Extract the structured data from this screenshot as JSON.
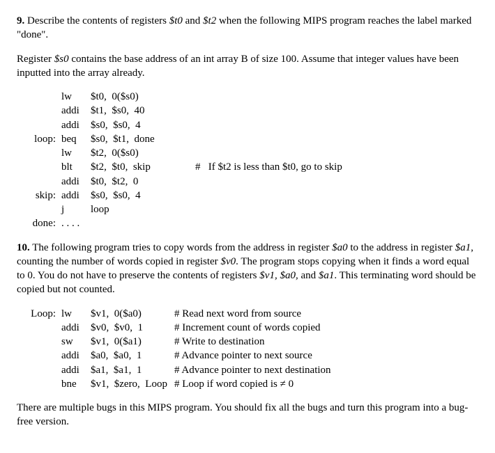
{
  "q9": {
    "prompt_a": "9.",
    "prompt_b": " Describe the contents of registers ",
    "reg_t0": "$t0",
    "prompt_c": " and ",
    "reg_t2": "$t2",
    "prompt_d": " when the following MIPS program reaches the label marked \"done\".",
    "setup_a": "Register ",
    "reg_s0": "$s0",
    "setup_b": " contains the base address of an int array B of size 100. Assume that integer values have been inputted into the array already.",
    "lines": [
      {
        "label": "",
        "op": "lw",
        "args": "$t0,  0($s0)",
        "comment": ""
      },
      {
        "label": "",
        "op": "addi",
        "args": "$t1,  $s0,  40",
        "comment": ""
      },
      {
        "label": "",
        "op": "addi",
        "args": "$s0,  $s0,  4",
        "comment": ""
      },
      {
        "label": "loop:",
        "op": "beq",
        "args": "$s0,  $t1,  done",
        "comment": ""
      },
      {
        "label": "",
        "op": "lw",
        "args": "$t2,  0($s0)",
        "comment": ""
      },
      {
        "label": "",
        "op": "blt",
        "args": "$t2,  $t0,  skip",
        "comment": "#   If $t2 is less than $t0, go to skip"
      },
      {
        "label": "",
        "op": "addi",
        "args": "$t0,  $t2,  0",
        "comment": ""
      },
      {
        "label": "skip:",
        "op": "addi",
        "args": "$s0,  $s0,  4",
        "comment": ""
      },
      {
        "label": "",
        "op": "j",
        "args": "loop",
        "comment": ""
      },
      {
        "label": "done:",
        "op": ". . . .",
        "args": "",
        "comment": ""
      }
    ]
  },
  "q10": {
    "prompt_a": "10.",
    "prompt_b": "  The following program tries to copy words from the address in register ",
    "reg_a0": "$a0",
    "prompt_c": " to the address in register ",
    "reg_a1": "$a1",
    "prompt_d": ", counting the number of words copied in register ",
    "reg_v0": "$v0",
    "prompt_e": ". The program stops copying when it finds a word equal to 0. You do not have to preserve the contents of registers ",
    "reg_v1": "$v1, $a0,",
    "prompt_f": " and ",
    "reg_a1b": "$a1",
    "prompt_g": ". This terminating word should be copied but not counted.",
    "lines": [
      {
        "label": "Loop:",
        "op": "lw",
        "args": "$v1,  0($a0)",
        "comment": "# Read next word from source"
      },
      {
        "label": "",
        "op": "addi",
        "args": "$v0,  $v0,  1",
        "comment": "# Increment count of words copied"
      },
      {
        "label": "",
        "op": "sw",
        "args": "$v1,  0($a1)",
        "comment": "# Write to destination"
      },
      {
        "label": "",
        "op": "addi",
        "args": "$a0,  $a0,  1",
        "comment": "# Advance pointer to next source"
      },
      {
        "label": "",
        "op": "addi",
        "args": "$a1,  $a1,  1",
        "comment": "# Advance pointer to next destination"
      },
      {
        "label": "",
        "op": "bne",
        "args": "$v1,  $zero,  Loop",
        "comment": "# Loop if word copied is ≠ 0"
      }
    ],
    "footer": "There are multiple bugs in this MIPS program. You should fix all the bugs and turn this program into a bug-free version."
  }
}
